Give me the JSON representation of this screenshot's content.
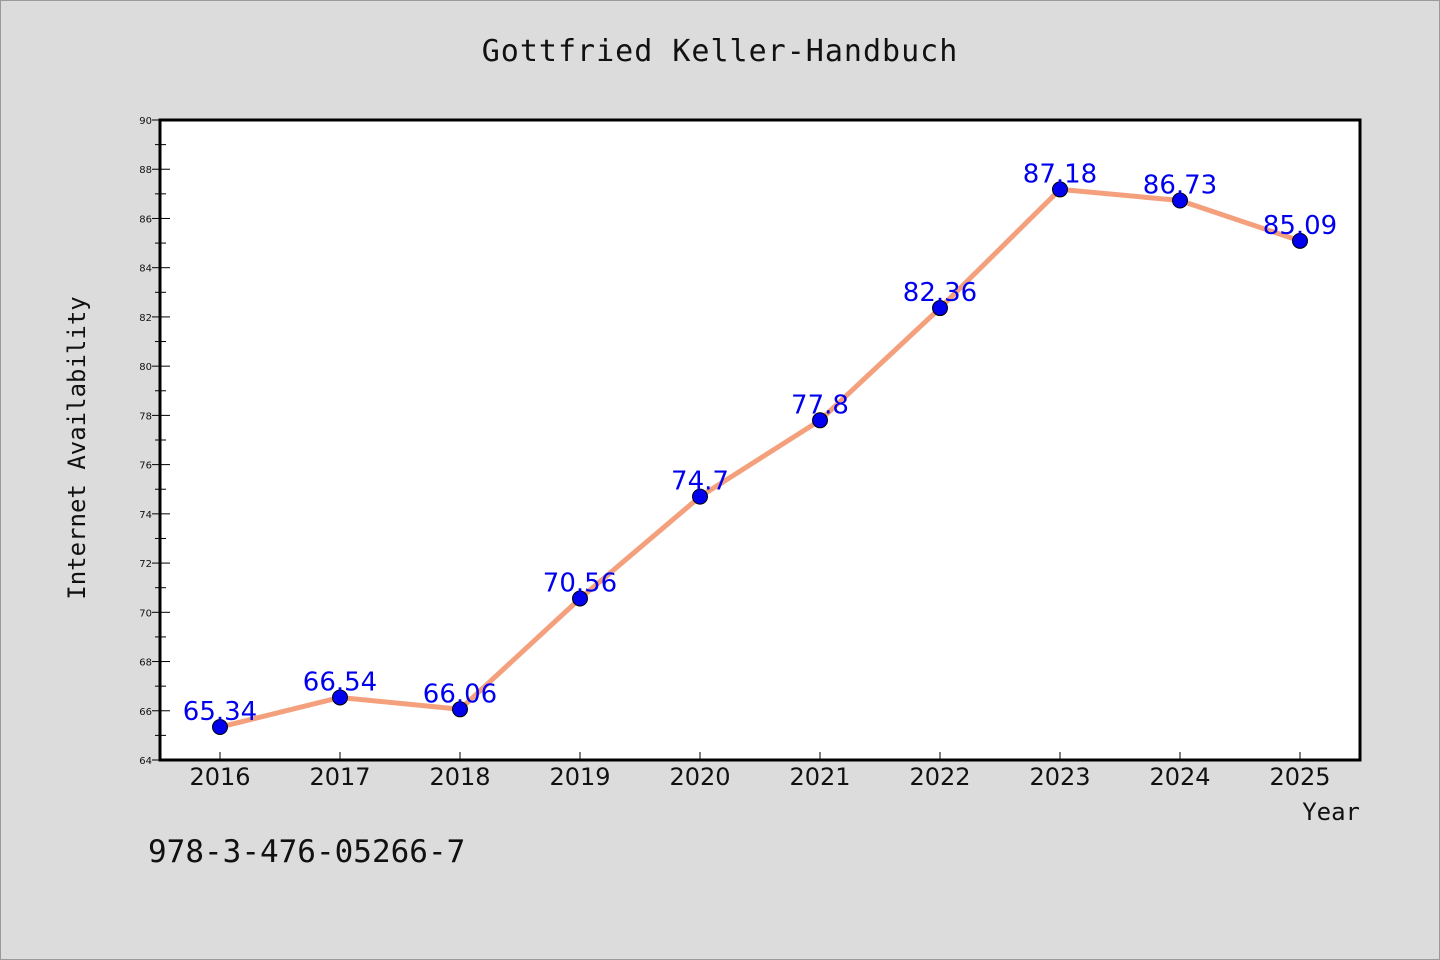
{
  "chart_data": {
    "type": "line",
    "title": "Gottfried Keller-Handbuch",
    "xlabel": "Year",
    "ylabel": "Internet Availability",
    "x": [
      "2016",
      "2017",
      "2018",
      "2019",
      "2020",
      "2021",
      "2022",
      "2023",
      "2024",
      "2025"
    ],
    "series": [
      {
        "values": [
          65.34,
          66.54,
          66.06,
          70.56,
          74.7,
          77.8,
          82.36,
          87.18,
          86.73,
          85.09
        ],
        "data_labels": [
          "65.34",
          "66.54",
          "66.06",
          "70.56",
          "74.7",
          "77.8",
          "82.36",
          "87.18",
          "86.73",
          "85.09"
        ],
        "line_color": "#f4a07c",
        "marker_color": "#0000ee"
      }
    ],
    "ylim": [
      64,
      90
    ],
    "yticks": [
      "64",
      "66",
      "68",
      "70",
      "72",
      "74",
      "76",
      "78",
      "80",
      "82",
      "84",
      "86",
      "88",
      "90"
    ],
    "grid": false,
    "footer_text": "978-3-476-05266-7"
  }
}
